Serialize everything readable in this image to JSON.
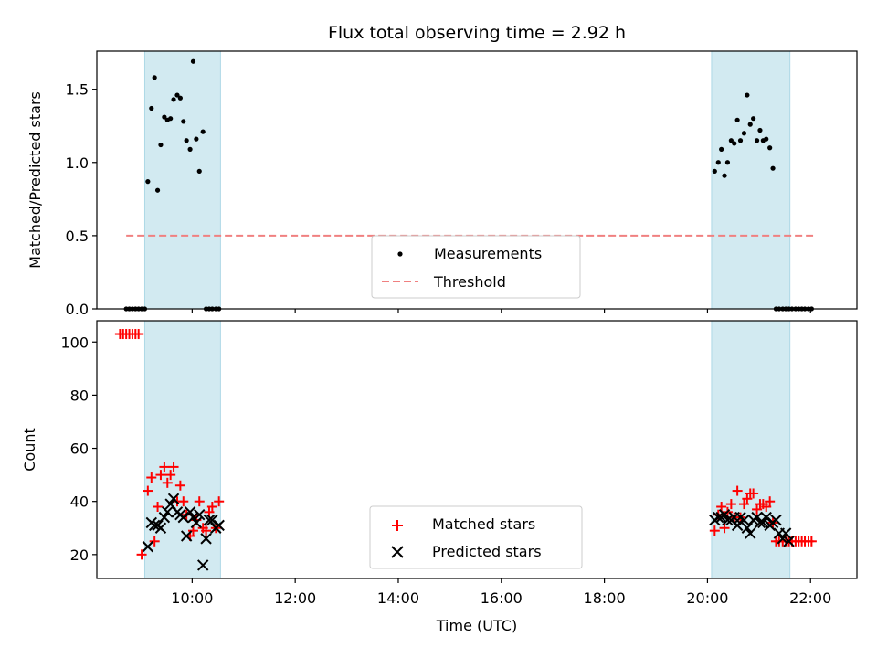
{
  "title": "Flux total observing time = 2.92 h",
  "colors": {
    "measurement": "#000000",
    "threshold": "#f08080",
    "matched": "#ff0000",
    "predicted": "#000000",
    "span": "#add8e6"
  },
  "chart_data": [
    {
      "type": "scatter",
      "ylabel": "Matched/Predicted stars",
      "ylim": [
        0.0,
        1.76
      ],
      "yticks": [
        "0.0",
        "0.5",
        "1.0",
        "1.5"
      ],
      "ytick_values": [
        0.0,
        0.5,
        1.0,
        1.5
      ],
      "threshold": {
        "value": 0.5,
        "x_start": 8.72,
        "x_end": 22.05
      },
      "legend": [
        "Measurements",
        "Threshold"
      ],
      "legend_position": "lower-center",
      "measurements": {
        "x": [
          8.72,
          8.78,
          8.84,
          8.9,
          8.96,
          9.02,
          9.08,
          9.14,
          9.21,
          9.27,
          9.33,
          9.39,
          9.46,
          9.52,
          9.58,
          9.64,
          9.71,
          9.77,
          9.83,
          9.89,
          9.96,
          10.02,
          10.08,
          10.14,
          10.21,
          10.27,
          10.33,
          10.39,
          10.46,
          10.52,
          20.14,
          20.21,
          20.27,
          20.33,
          20.39,
          20.46,
          20.52,
          20.58,
          20.64,
          20.71,
          20.77,
          20.83,
          20.89,
          20.96,
          21.02,
          21.08,
          21.14,
          21.21,
          21.27,
          21.33,
          21.39,
          21.46,
          21.52,
          21.58,
          21.64,
          21.71,
          21.77,
          21.83,
          21.89,
          21.96,
          22.02
        ],
        "y": [
          0.0,
          0.0,
          0.0,
          0.0,
          0.0,
          0.0,
          0.0,
          0.87,
          1.37,
          1.58,
          0.81,
          1.12,
          1.31,
          1.29,
          1.3,
          1.43,
          1.46,
          1.44,
          1.28,
          1.15,
          1.09,
          1.69,
          1.16,
          0.94,
          1.21,
          0.0,
          0.0,
          0.0,
          0.0,
          0.0,
          0.94,
          1.0,
          1.09,
          0.91,
          1.0,
          1.15,
          1.13,
          1.29,
          1.15,
          1.2,
          1.46,
          1.26,
          1.3,
          1.15,
          1.22,
          1.15,
          1.16,
          1.1,
          0.96,
          0.0,
          0.0,
          0.0,
          0.0,
          0.0,
          0.0,
          0.0,
          0.0,
          0.0,
          0.0,
          0.0,
          0.0
        ]
      },
      "shaded_ranges": [
        [
          9.08,
          10.55
        ],
        [
          20.08,
          21.6
        ]
      ]
    },
    {
      "type": "scatter",
      "xlabel": "Time (UTC)",
      "ylabel": "Count",
      "ylim": [
        11,
        108
      ],
      "yticks": [
        "20",
        "40",
        "60",
        "80",
        "100"
      ],
      "ytick_values": [
        20,
        40,
        60,
        80,
        100
      ],
      "xlim": [
        8.15,
        22.9
      ],
      "xticks": [
        "10:00",
        "12:00",
        "14:00",
        "16:00",
        "18:00",
        "20:00",
        "22:00"
      ],
      "xtick_values": [
        10,
        12,
        14,
        16,
        18,
        20,
        22
      ],
      "legend": [
        "Matched stars",
        "Predicted stars"
      ],
      "legend_position": "lower-center",
      "series": [
        {
          "name": "Matched stars",
          "x": [
            8.6,
            8.66,
            8.72,
            8.78,
            8.84,
            8.9,
            8.96,
            9.02,
            9.14,
            9.21,
            9.27,
            9.33,
            9.39,
            9.46,
            9.52,
            9.58,
            9.64,
            9.71,
            9.77,
            9.83,
            9.89,
            9.96,
            10.02,
            10.08,
            10.14,
            10.21,
            10.27,
            10.33,
            10.39,
            10.46,
            10.52,
            20.14,
            20.21,
            20.27,
            20.33,
            20.39,
            20.46,
            20.52,
            20.58,
            20.64,
            20.71,
            20.77,
            20.83,
            20.89,
            20.96,
            21.02,
            21.08,
            21.14,
            21.21,
            21.27,
            21.33,
            21.39,
            21.46,
            21.52,
            21.58,
            21.64,
            21.71,
            21.77,
            21.83,
            21.89,
            21.96,
            22.02
          ],
          "y": [
            103,
            103,
            103,
            103,
            103,
            103,
            103,
            20,
            44,
            49,
            25,
            38,
            50,
            53,
            47,
            50,
            53,
            40,
            46,
            40,
            35,
            27,
            29,
            33,
            40,
            30,
            29,
            36,
            38,
            30,
            40,
            29,
            35,
            38,
            30,
            36,
            39,
            34,
            44,
            34,
            39,
            41,
            43,
            43,
            37,
            39,
            39,
            38,
            40,
            32,
            25,
            25,
            25,
            25,
            25,
            25,
            25,
            25,
            25,
            25,
            25,
            25
          ]
        },
        {
          "name": "Predicted stars",
          "x": [
            9.14,
            9.21,
            9.27,
            9.33,
            9.39,
            9.46,
            9.52,
            9.58,
            9.64,
            9.71,
            9.77,
            9.83,
            9.89,
            9.96,
            10.02,
            10.08,
            10.14,
            10.21,
            10.27,
            10.33,
            10.39,
            10.46,
            10.52,
            20.14,
            20.21,
            20.27,
            20.33,
            20.39,
            20.46,
            20.52,
            20.58,
            20.64,
            20.71,
            20.77,
            20.83,
            20.89,
            20.96,
            21.02,
            21.08,
            21.14,
            21.21,
            21.27,
            21.33,
            21.39,
            21.46,
            21.52,
            21.58
          ],
          "y": [
            23,
            32,
            31,
            31,
            30,
            34,
            36,
            39,
            41,
            36,
            35,
            34,
            27,
            36,
            34,
            32,
            35,
            16,
            26,
            33,
            33,
            30,
            31,
            33,
            34,
            34,
            35,
            33,
            33,
            34,
            31,
            34,
            33,
            30,
            28,
            33,
            34,
            32,
            32,
            34,
            31,
            32,
            33,
            28,
            26,
            28,
            25
          ]
        }
      ],
      "shaded_ranges": [
        [
          9.08,
          10.55
        ],
        [
          20.08,
          21.6
        ]
      ]
    }
  ]
}
